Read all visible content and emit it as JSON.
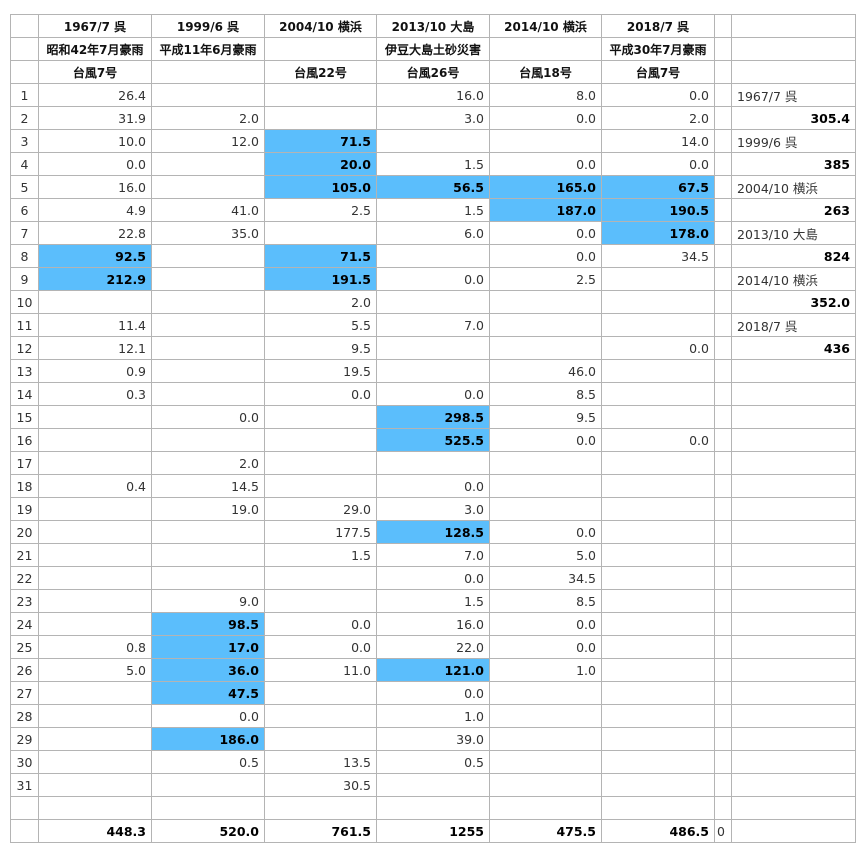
{
  "header_rows": [
    [
      "1967/7 呉",
      "1999/6 呉",
      "2004/10 横浜",
      "2013/10 大島",
      "2014/10 横浜",
      "2018/7 呉"
    ],
    [
      "昭和42年7月豪雨",
      "平成11年6月豪雨",
      "",
      "伊豆大島土砂災害",
      "",
      "平成30年7月豪雨"
    ],
    [
      "台風7号",
      "",
      "台風22号",
      "台風26号",
      "台風18号",
      "台風7号"
    ]
  ],
  "highlight_color": "#5bbefc",
  "rows": [
    {
      "day": "1",
      "values": [
        "26.4",
        "",
        "",
        "16.0",
        "8.0",
        "0.0"
      ],
      "highlight": [],
      "side": "1967/7 呉",
      "side_bold": false
    },
    {
      "day": "2",
      "values": [
        "31.9",
        "2.0",
        "",
        "3.0",
        "0.0",
        "2.0"
      ],
      "highlight": [],
      "side": "305.4",
      "side_bold": true
    },
    {
      "day": "3",
      "values": [
        "10.0",
        "12.0",
        "71.5",
        "",
        "",
        "14.0"
      ],
      "highlight": [
        2
      ],
      "side": "1999/6 呉",
      "side_bold": false
    },
    {
      "day": "4",
      "values": [
        "0.0",
        "",
        "20.0",
        "1.5",
        "0.0",
        "0.0"
      ],
      "highlight": [
        2
      ],
      "side": "385",
      "side_bold": true
    },
    {
      "day": "5",
      "values": [
        "16.0",
        "",
        "105.0",
        "56.5",
        "165.0",
        "67.5"
      ],
      "highlight": [
        2,
        3,
        4,
        5
      ],
      "side": "2004/10 横浜",
      "side_bold": false
    },
    {
      "day": "6",
      "values": [
        "4.9",
        "41.0",
        "2.5",
        "1.5",
        "187.0",
        "190.5"
      ],
      "highlight": [
        4,
        5
      ],
      "side": "263",
      "side_bold": true
    },
    {
      "day": "7",
      "values": [
        "22.8",
        "35.0",
        "",
        "6.0",
        "0.0",
        "178.0"
      ],
      "highlight": [
        5
      ],
      "side": "2013/10 大島",
      "side_bold": false
    },
    {
      "day": "8",
      "values": [
        "92.5",
        "",
        "71.5",
        "",
        "0.0",
        "34.5"
      ],
      "highlight": [
        0,
        2
      ],
      "side": "824",
      "side_bold": true
    },
    {
      "day": "9",
      "values": [
        "212.9",
        "",
        "191.5",
        "0.0",
        "2.5",
        ""
      ],
      "highlight": [
        0,
        2
      ],
      "side": "2014/10 横浜",
      "side_bold": false
    },
    {
      "day": "10",
      "values": [
        "",
        "",
        "2.0",
        "",
        "",
        ""
      ],
      "highlight": [],
      "side": "352.0",
      "side_bold": true
    },
    {
      "day": "11",
      "values": [
        "11.4",
        "",
        "5.5",
        "7.0",
        "",
        ""
      ],
      "highlight": [],
      "side": "2018/7 呉",
      "side_bold": false
    },
    {
      "day": "12",
      "values": [
        "12.1",
        "",
        "9.5",
        "",
        "",
        "0.0"
      ],
      "highlight": [],
      "side": "436",
      "side_bold": true
    },
    {
      "day": "13",
      "values": [
        "0.9",
        "",
        "19.5",
        "",
        "46.0",
        ""
      ],
      "highlight": [],
      "side": "",
      "side_bold": false
    },
    {
      "day": "14",
      "values": [
        "0.3",
        "",
        "0.0",
        "0.0",
        "8.5",
        ""
      ],
      "highlight": [],
      "side": "",
      "side_bold": false
    },
    {
      "day": "15",
      "values": [
        "",
        "0.0",
        "",
        "298.5",
        "9.5",
        ""
      ],
      "highlight": [
        3
      ],
      "side": "",
      "side_bold": false
    },
    {
      "day": "16",
      "values": [
        "",
        "",
        "",
        "525.5",
        "0.0",
        "0.0"
      ],
      "highlight": [
        3
      ],
      "side": "",
      "side_bold": false
    },
    {
      "day": "17",
      "values": [
        "",
        "2.0",
        "",
        "",
        "",
        ""
      ],
      "highlight": [],
      "side": "",
      "side_bold": false
    },
    {
      "day": "18",
      "values": [
        "0.4",
        "14.5",
        "",
        "0.0",
        "",
        ""
      ],
      "highlight": [],
      "side": "",
      "side_bold": false
    },
    {
      "day": "19",
      "values": [
        "",
        "19.0",
        "29.0",
        "3.0",
        "",
        ""
      ],
      "highlight": [],
      "side": "",
      "side_bold": false
    },
    {
      "day": "20",
      "values": [
        "",
        "",
        "177.5",
        "128.5",
        "0.0",
        ""
      ],
      "highlight": [
        3
      ],
      "side": "",
      "side_bold": false
    },
    {
      "day": "21",
      "values": [
        "",
        "",
        "1.5",
        "7.0",
        "5.0",
        ""
      ],
      "highlight": [],
      "side": "",
      "side_bold": false
    },
    {
      "day": "22",
      "values": [
        "",
        "",
        "",
        "0.0",
        "34.5",
        ""
      ],
      "highlight": [],
      "side": "",
      "side_bold": false
    },
    {
      "day": "23",
      "values": [
        "",
        "9.0",
        "",
        "1.5",
        "8.5",
        ""
      ],
      "highlight": [],
      "side": "",
      "side_bold": false
    },
    {
      "day": "24",
      "values": [
        "",
        "98.5",
        "0.0",
        "16.0",
        "0.0",
        ""
      ],
      "highlight": [
        1
      ],
      "side": "",
      "side_bold": false
    },
    {
      "day": "25",
      "values": [
        "0.8",
        "17.0",
        "0.0",
        "22.0",
        "0.0",
        ""
      ],
      "highlight": [
        1
      ],
      "side": "",
      "side_bold": false
    },
    {
      "day": "26",
      "values": [
        "5.0",
        "36.0",
        "11.0",
        "121.0",
        "1.0",
        ""
      ],
      "highlight": [
        1,
        3
      ],
      "side": "",
      "side_bold": false
    },
    {
      "day": "27",
      "values": [
        "",
        "47.5",
        "",
        "0.0",
        "",
        ""
      ],
      "highlight": [
        1
      ],
      "side": "",
      "side_bold": false
    },
    {
      "day": "28",
      "values": [
        "",
        "0.0",
        "",
        "1.0",
        "",
        ""
      ],
      "highlight": [],
      "side": "",
      "side_bold": false
    },
    {
      "day": "29",
      "values": [
        "",
        "186.0",
        "",
        "39.0",
        "",
        ""
      ],
      "highlight": [
        1
      ],
      "side": "",
      "side_bold": false
    },
    {
      "day": "30",
      "values": [
        "",
        "0.5",
        "13.5",
        "0.5",
        "",
        ""
      ],
      "highlight": [],
      "side": "",
      "side_bold": false
    },
    {
      "day": "31",
      "values": [
        "",
        "",
        "30.5",
        "",
        "",
        ""
      ],
      "highlight": [],
      "side": "",
      "side_bold": false
    }
  ],
  "totals": {
    "values": [
      "448.3",
      "520.0",
      "761.5",
      "1255",
      "475.5",
      "486.5"
    ],
    "extra": "0"
  }
}
